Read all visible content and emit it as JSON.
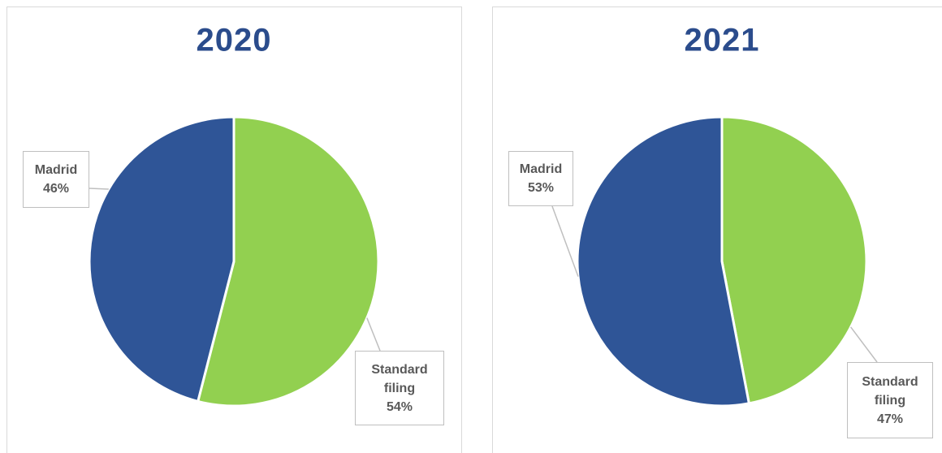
{
  "chart_data": [
    {
      "type": "pie",
      "title": "2020",
      "categories": [
        "Standard filing",
        "Madrid"
      ],
      "values": [
        54,
        46
      ],
      "value_labels": [
        "54%",
        "46%"
      ],
      "colors": [
        "#92d050",
        "#2f5597"
      ]
    },
    {
      "type": "pie",
      "title": "2021",
      "categories": [
        "Standard filing",
        "Madrid"
      ],
      "values": [
        47,
        53
      ],
      "value_labels": [
        "47%",
        "53%"
      ],
      "colors": [
        "#92d050",
        "#2f5597"
      ]
    }
  ]
}
